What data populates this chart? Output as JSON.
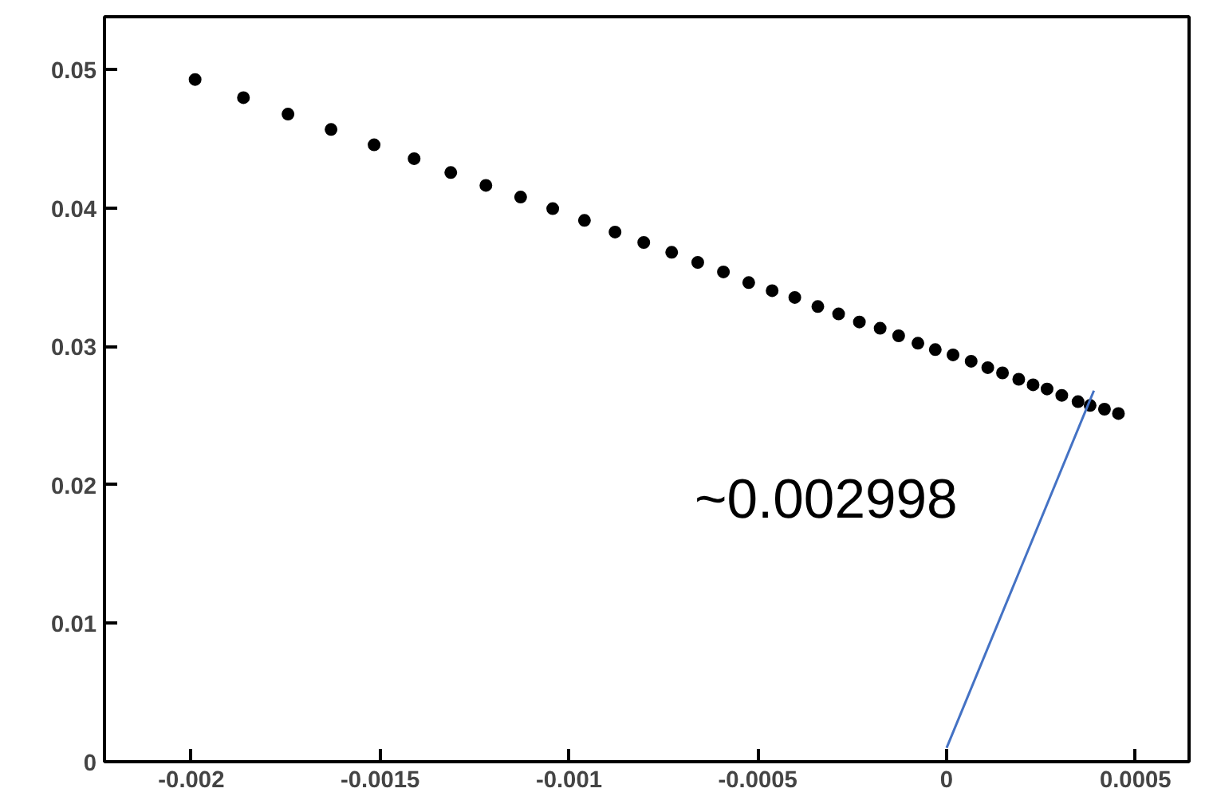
{
  "chart_data": {
    "type": "scatter",
    "xlim": [
      -0.00223,
      0.000642
    ],
    "ylim": [
      0,
      0.0538
    ],
    "xticks": [
      -0.002,
      -0.0015,
      -0.001,
      -0.0005,
      0,
      0.0005
    ],
    "yticks": [
      0,
      0.01,
      0.02,
      0.03,
      0.04,
      0.05
    ],
    "grid": false,
    "annotations": [
      "~0.002998"
    ],
    "series": [
      {
        "color": "#000000",
        "marker": "circle",
        "x": [
          -0.00199,
          -0.001862,
          -0.001744,
          -0.00163,
          -0.001516,
          -0.00141,
          -0.001313,
          -0.00122,
          -0.001128,
          -0.001043,
          -0.000959,
          -0.000878,
          -0.000802,
          -0.000728,
          -0.000659,
          -0.000591,
          -0.000524,
          -0.000462,
          -0.000402,
          -0.000341,
          -0.000286,
          -0.000231,
          -0.000176,
          -0.000127,
          -7.6e-05,
          -3e-05,
          1.7e-05,
          6.5e-05,
          0.000109,
          0.000148,
          0.000191,
          0.000229,
          0.000266,
          0.000305,
          0.000348,
          0.00038,
          0.000418,
          0.000455
        ],
        "values": [
          0.04927,
          0.04796,
          0.04677,
          0.04566,
          0.04455,
          0.04355,
          0.04255,
          0.04162,
          0.04078,
          0.03994,
          0.03909,
          0.03825,
          0.0375,
          0.03679,
          0.03606,
          0.03537,
          0.0346,
          0.03402,
          0.03353,
          0.03287,
          0.03234,
          0.03176,
          0.0313,
          0.03076,
          0.03022,
          0.02976,
          0.02938,
          0.02892,
          0.02846,
          0.02808,
          0.02762,
          0.02722,
          0.02692,
          0.02646,
          0.026,
          0.02573,
          0.02546,
          0.02515
        ]
      },
      {
        "type": "line",
        "color": "#4472c4",
        "x": [
          0,
          0.00039
        ],
        "values": [
          0.001,
          0.0268
        ]
      }
    ]
  }
}
